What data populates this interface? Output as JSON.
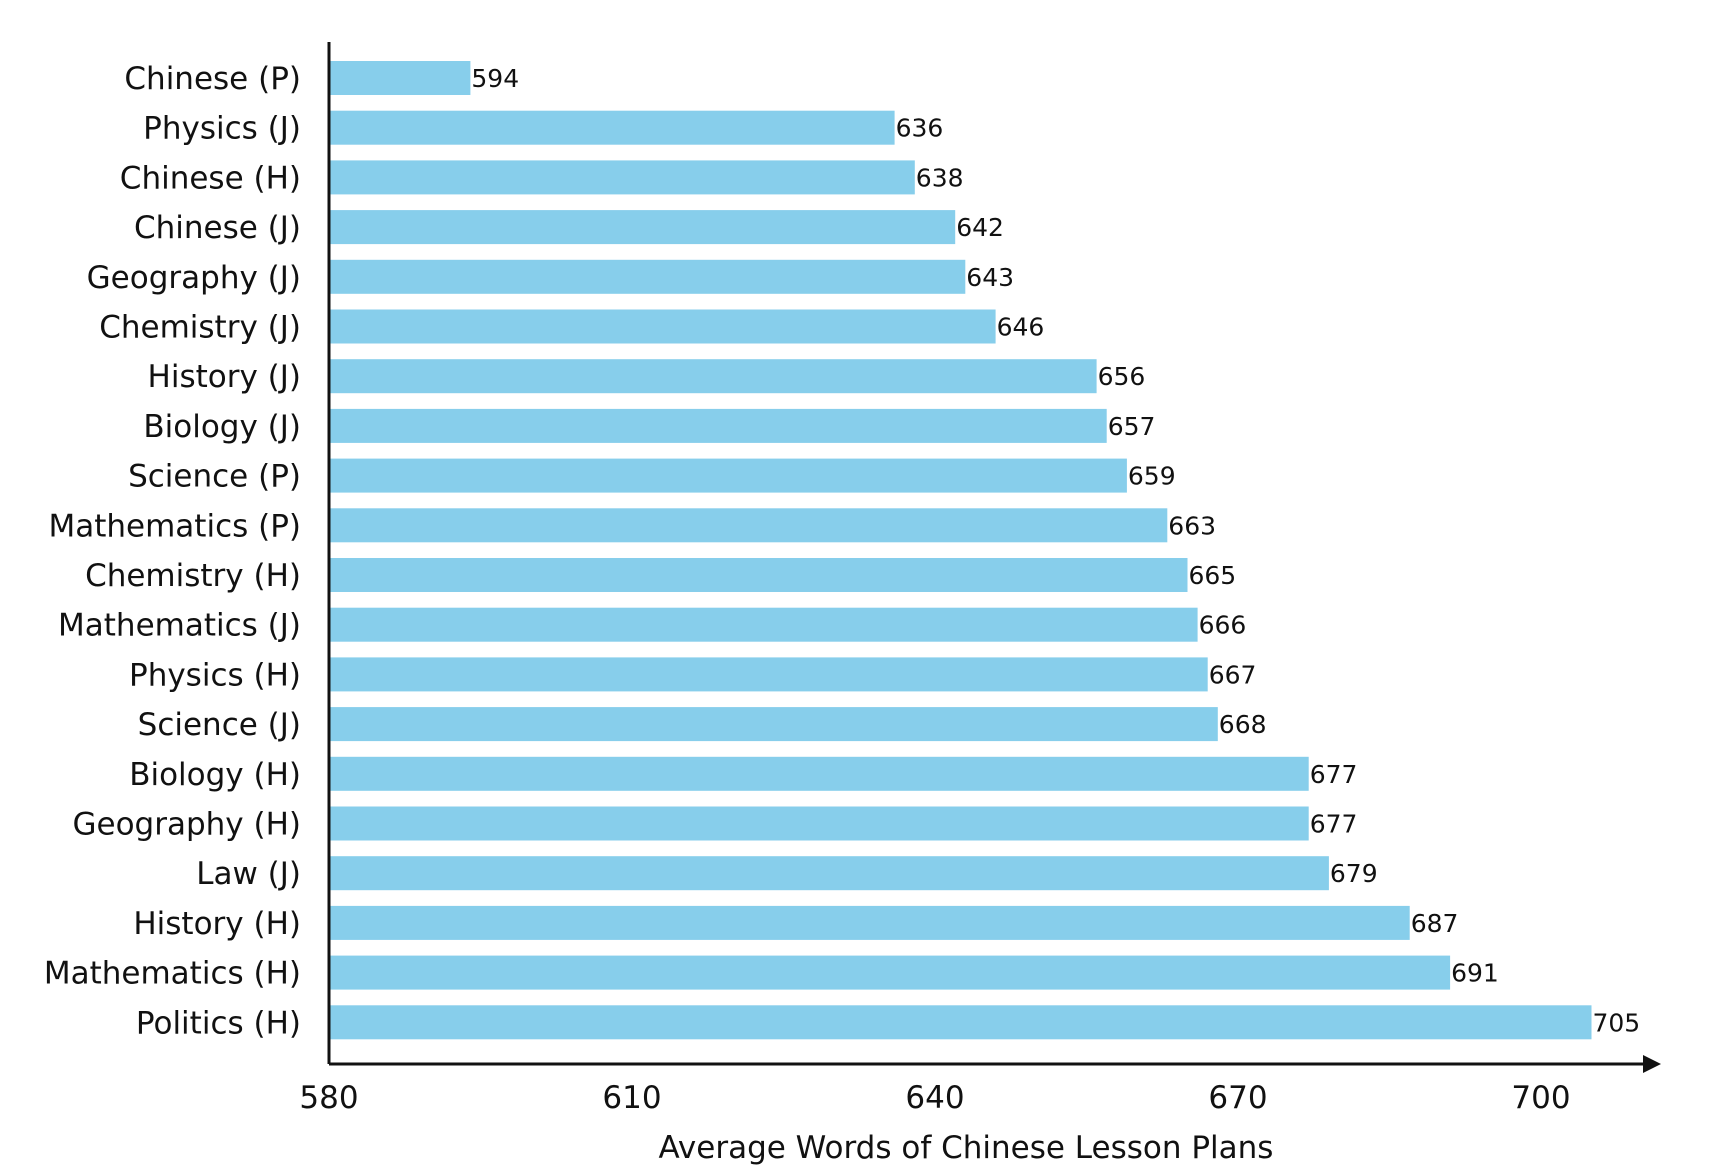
{
  "chart_data": {
    "type": "bar",
    "orientation": "horizontal",
    "categories": [
      "Chinese (P)",
      "Physics (J)",
      "Chinese (H)",
      "Chinese (J)",
      "Geography (J)",
      "Chemistry (J)",
      "History (J)",
      "Biology (J)",
      "Science (P)",
      "Mathematics (P)",
      "Chemistry (H)",
      "Mathematics (J)",
      "Physics (H)",
      "Science (J)",
      "Biology (H)",
      "Geography (H)",
      "Law (J)",
      "History (H)",
      "Mathematics (H)",
      "Politics (H)"
    ],
    "values": [
      594,
      636,
      638,
      642,
      643,
      646,
      656,
      657,
      659,
      663,
      665,
      666,
      667,
      668,
      677,
      677,
      679,
      687,
      691,
      705
    ],
    "xlabel": "Average Words of Chinese Lesson Plans",
    "ylabel": "",
    "title": "",
    "xlim": [
      580,
      710
    ],
    "xticks": [
      "580",
      "610",
      "640",
      "670",
      "700"
    ],
    "bar_color": "#87CEEB",
    "grid": false,
    "legend": "none"
  }
}
